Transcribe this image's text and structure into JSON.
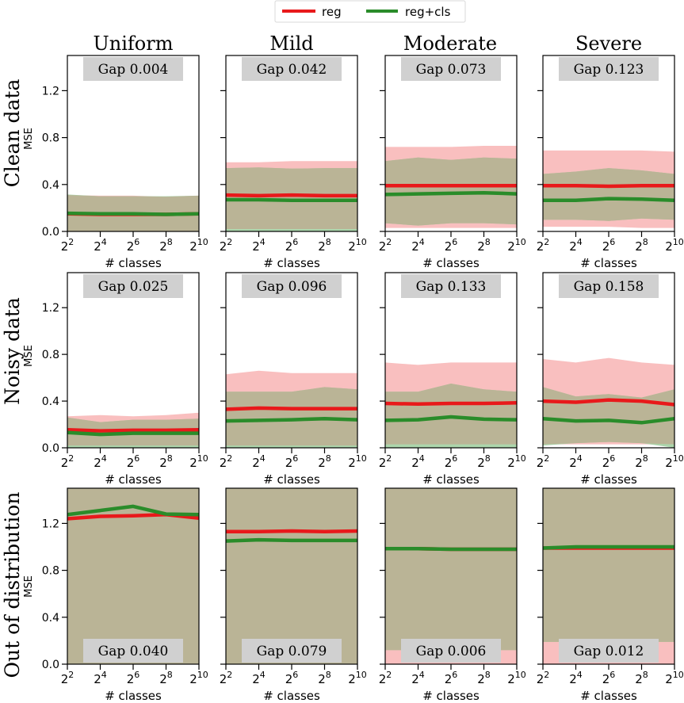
{
  "legend": {
    "items": [
      {
        "label": "reg",
        "color": "#e8191b"
      },
      {
        "label": "reg+cls",
        "color": "#2a8c2a"
      }
    ]
  },
  "columns": [
    "Uniform",
    "Mild",
    "Moderate",
    "Severe"
  ],
  "rows": [
    "Clean data",
    "Noisy data",
    "Out of distribution"
  ],
  "ylabel": "MSE",
  "xlabel": "# classes",
  "colors": {
    "reg": "#e8191b",
    "cls": "#2a8c2a",
    "reg_band": "#f8b4b4",
    "cls_band": "#9ecf9e",
    "overlap_band": "#bab496",
    "gap_box": "#d0d0d0"
  },
  "chart_data": {
    "type": "line",
    "x_exponents": [
      2,
      4,
      6,
      8,
      10
    ],
    "x_base": "2",
    "x_tick_labels": [
      "2^2",
      "2^4",
      "2^6",
      "2^8",
      "2^10"
    ],
    "panels": [
      {
        "row": 0,
        "col": 0,
        "gap": "Gap 0.004",
        "gap_pos": "top",
        "ylim": [
          0,
          1.5
        ],
        "yticks": [
          0.0,
          0.4,
          0.8,
          1.2
        ],
        "show_ytick_labels": true,
        "reg": [
          0.15,
          0.145,
          0.145,
          0.145,
          0.15
        ],
        "cls": [
          0.155,
          0.15,
          0.15,
          0.145,
          0.15
        ],
        "reg_lo": [
          0.0,
          0.0,
          0.0,
          0.0,
          0.0
        ],
        "reg_hi": [
          0.31,
          0.305,
          0.305,
          0.295,
          0.305
        ],
        "cls_lo": [
          0.0,
          0.0,
          0.0,
          0.0,
          0.0
        ],
        "cls_hi": [
          0.315,
          0.3,
          0.3,
          0.3,
          0.305
        ]
      },
      {
        "row": 0,
        "col": 1,
        "gap": "Gap 0.042",
        "gap_pos": "top",
        "ylim": [
          0,
          1.5
        ],
        "yticks": [
          0.0,
          0.4,
          0.8,
          1.2
        ],
        "show_ytick_labels": false,
        "reg": [
          0.31,
          0.305,
          0.31,
          0.305,
          0.305
        ],
        "cls": [
          0.27,
          0.27,
          0.265,
          0.265,
          0.265
        ],
        "reg_lo": [
          0.02,
          0.02,
          0.02,
          0.02,
          0.02
        ],
        "reg_hi": [
          0.59,
          0.59,
          0.6,
          0.6,
          0.6
        ],
        "cls_lo": [
          0.0,
          0.0,
          0.0,
          0.0,
          0.0
        ],
        "cls_hi": [
          0.54,
          0.545,
          0.535,
          0.54,
          0.54
        ]
      },
      {
        "row": 0,
        "col": 2,
        "gap": "Gap 0.073",
        "gap_pos": "top",
        "ylim": [
          0,
          1.5
        ],
        "yticks": [
          0.0,
          0.4,
          0.8,
          1.2
        ],
        "show_ytick_labels": false,
        "reg": [
          0.39,
          0.39,
          0.39,
          0.39,
          0.39
        ],
        "cls": [
          0.315,
          0.32,
          0.325,
          0.33,
          0.32
        ],
        "reg_lo": [
          0.03,
          0.03,
          0.03,
          0.03,
          0.03
        ],
        "reg_hi": [
          0.72,
          0.72,
          0.72,
          0.73,
          0.73
        ],
        "cls_lo": [
          0.07,
          0.05,
          0.07,
          0.07,
          0.06
        ],
        "cls_hi": [
          0.6,
          0.63,
          0.61,
          0.63,
          0.62
        ]
      },
      {
        "row": 0,
        "col": 3,
        "gap": "Gap 0.123",
        "gap_pos": "top",
        "ylim": [
          0,
          1.5
        ],
        "yticks": [
          0.0,
          0.4,
          0.8,
          1.2
        ],
        "show_ytick_labels": false,
        "reg": [
          0.39,
          0.39,
          0.385,
          0.39,
          0.39
        ],
        "cls": [
          0.265,
          0.265,
          0.28,
          0.275,
          0.265
        ],
        "reg_lo": [
          0.04,
          0.04,
          0.04,
          0.03,
          0.03
        ],
        "reg_hi": [
          0.69,
          0.69,
          0.69,
          0.69,
          0.68
        ],
        "cls_lo": [
          0.1,
          0.1,
          0.09,
          0.11,
          0.1
        ],
        "cls_hi": [
          0.49,
          0.51,
          0.54,
          0.52,
          0.49
        ]
      },
      {
        "row": 1,
        "col": 0,
        "gap": "Gap 0.025",
        "gap_pos": "top",
        "ylim": [
          0,
          1.5
        ],
        "yticks": [
          0.0,
          0.4,
          0.8,
          1.2
        ],
        "show_ytick_labels": true,
        "reg": [
          0.155,
          0.145,
          0.15,
          0.15,
          0.155
        ],
        "cls": [
          0.13,
          0.115,
          0.125,
          0.125,
          0.125
        ],
        "reg_lo": [
          0.02,
          0.02,
          0.02,
          0.02,
          0.02
        ],
        "reg_hi": [
          0.27,
          0.28,
          0.27,
          0.28,
          0.3
        ],
        "cls_lo": [
          0.0,
          0.0,
          0.0,
          0.0,
          0.0
        ],
        "cls_hi": [
          0.26,
          0.22,
          0.24,
          0.24,
          0.25
        ]
      },
      {
        "row": 1,
        "col": 1,
        "gap": "Gap 0.096",
        "gap_pos": "top",
        "ylim": [
          0,
          1.5
        ],
        "yticks": [
          0.0,
          0.4,
          0.8,
          1.2
        ],
        "show_ytick_labels": false,
        "reg": [
          0.33,
          0.34,
          0.335,
          0.335,
          0.335
        ],
        "cls": [
          0.23,
          0.235,
          0.24,
          0.25,
          0.24
        ],
        "reg_lo": [
          0.02,
          0.02,
          0.02,
          0.02,
          0.02
        ],
        "reg_hi": [
          0.63,
          0.66,
          0.64,
          0.64,
          0.64
        ],
        "cls_lo": [
          0.0,
          0.0,
          0.0,
          0.0,
          0.0
        ],
        "cls_hi": [
          0.48,
          0.48,
          0.48,
          0.52,
          0.5
        ]
      },
      {
        "row": 1,
        "col": 2,
        "gap": "Gap 0.133",
        "gap_pos": "top",
        "ylim": [
          0,
          1.5
        ],
        "yticks": [
          0.0,
          0.4,
          0.8,
          1.2
        ],
        "show_ytick_labels": false,
        "reg": [
          0.38,
          0.375,
          0.38,
          0.38,
          0.385
        ],
        "cls": [
          0.235,
          0.24,
          0.265,
          0.245,
          0.24
        ],
        "reg_lo": [
          0.03,
          0.03,
          0.03,
          0.03,
          0.03
        ],
        "reg_hi": [
          0.73,
          0.71,
          0.73,
          0.73,
          0.73
        ],
        "cls_lo": [
          0.0,
          0.0,
          0.0,
          0.0,
          0.0
        ],
        "cls_hi": [
          0.48,
          0.48,
          0.55,
          0.5,
          0.48
        ]
      },
      {
        "row": 1,
        "col": 3,
        "gap": "Gap 0.158",
        "gap_pos": "top",
        "ylim": [
          0,
          1.5
        ],
        "yticks": [
          0.0,
          0.4,
          0.8,
          1.2
        ],
        "show_ytick_labels": false,
        "reg": [
          0.4,
          0.39,
          0.41,
          0.4,
          0.37
        ],
        "cls": [
          0.25,
          0.23,
          0.235,
          0.215,
          0.25
        ],
        "reg_lo": [
          0.03,
          0.03,
          0.03,
          0.03,
          0.03
        ],
        "reg_hi": [
          0.76,
          0.73,
          0.77,
          0.73,
          0.71
        ],
        "cls_lo": [
          0.02,
          0.04,
          0.05,
          0.04,
          0.0
        ],
        "cls_hi": [
          0.52,
          0.44,
          0.46,
          0.43,
          0.5
        ]
      },
      {
        "row": 2,
        "col": 0,
        "gap": "Gap 0.040",
        "gap_pos": "bottom",
        "ylim": [
          0,
          1.5
        ],
        "yticks": [
          0.0,
          0.4,
          0.8,
          1.2
        ],
        "show_ytick_labels": true,
        "reg": [
          1.24,
          1.26,
          1.265,
          1.275,
          1.245
        ],
        "cls": [
          1.275,
          1.31,
          1.345,
          1.28,
          1.275
        ],
        "reg_lo": [
          0.0,
          0.0,
          0.0,
          0.0,
          0.0
        ],
        "reg_hi": [
          1.5,
          1.5,
          1.5,
          1.5,
          1.5
        ],
        "cls_lo": [
          0.0,
          0.0,
          0.0,
          0.0,
          0.0
        ],
        "cls_hi": [
          1.5,
          1.5,
          1.5,
          1.5,
          1.5
        ]
      },
      {
        "row": 2,
        "col": 1,
        "gap": "Gap 0.079",
        "gap_pos": "bottom",
        "ylim": [
          0,
          1.5
        ],
        "yticks": [
          0.0,
          0.4,
          0.8,
          1.2
        ],
        "show_ytick_labels": false,
        "reg": [
          1.13,
          1.13,
          1.135,
          1.13,
          1.135
        ],
        "cls": [
          1.05,
          1.06,
          1.055,
          1.055,
          1.055
        ],
        "reg_lo": [
          0.0,
          0.0,
          0.0,
          0.0,
          0.0
        ],
        "reg_hi": [
          1.5,
          1.5,
          1.5,
          1.5,
          1.5
        ],
        "cls_lo": [
          0.0,
          0.0,
          0.0,
          0.0,
          0.0
        ],
        "cls_hi": [
          1.5,
          1.5,
          1.5,
          1.5,
          1.5
        ]
      },
      {
        "row": 2,
        "col": 2,
        "gap": "Gap 0.006",
        "gap_pos": "bottom",
        "ylim": [
          0,
          1.5
        ],
        "yticks": [
          0.0,
          0.4,
          0.8,
          1.2
        ],
        "show_ytick_labels": false,
        "reg": [
          0.985,
          0.985,
          0.98,
          0.98,
          0.98
        ],
        "cls": [
          0.985,
          0.985,
          0.98,
          0.98,
          0.98
        ],
        "reg_lo": [
          0.0,
          0.0,
          0.0,
          0.0,
          0.0
        ],
        "reg_hi": [
          1.5,
          1.5,
          1.5,
          1.5,
          1.5
        ],
        "cls_lo": [
          0.12,
          0.12,
          0.12,
          0.12,
          0.12
        ],
        "cls_hi": [
          1.5,
          1.5,
          1.5,
          1.5,
          1.5
        ]
      },
      {
        "row": 2,
        "col": 3,
        "gap": "Gap 0.012",
        "gap_pos": "bottom",
        "ylim": [
          0,
          1.5
        ],
        "yticks": [
          0.0,
          0.4,
          0.8,
          1.2
        ],
        "show_ytick_labels": false,
        "reg": [
          0.99,
          0.99,
          0.99,
          0.99,
          0.99
        ],
        "cls": [
          0.99,
          1.0,
          1.0,
          1.0,
          1.0
        ],
        "reg_lo": [
          0.0,
          0.0,
          0.0,
          0.0,
          0.0
        ],
        "reg_hi": [
          1.5,
          1.5,
          1.5,
          1.5,
          1.5
        ],
        "cls_lo": [
          0.19,
          0.19,
          0.19,
          0.19,
          0.19
        ],
        "cls_hi": [
          1.5,
          1.5,
          1.5,
          1.5,
          1.5
        ]
      }
    ]
  }
}
